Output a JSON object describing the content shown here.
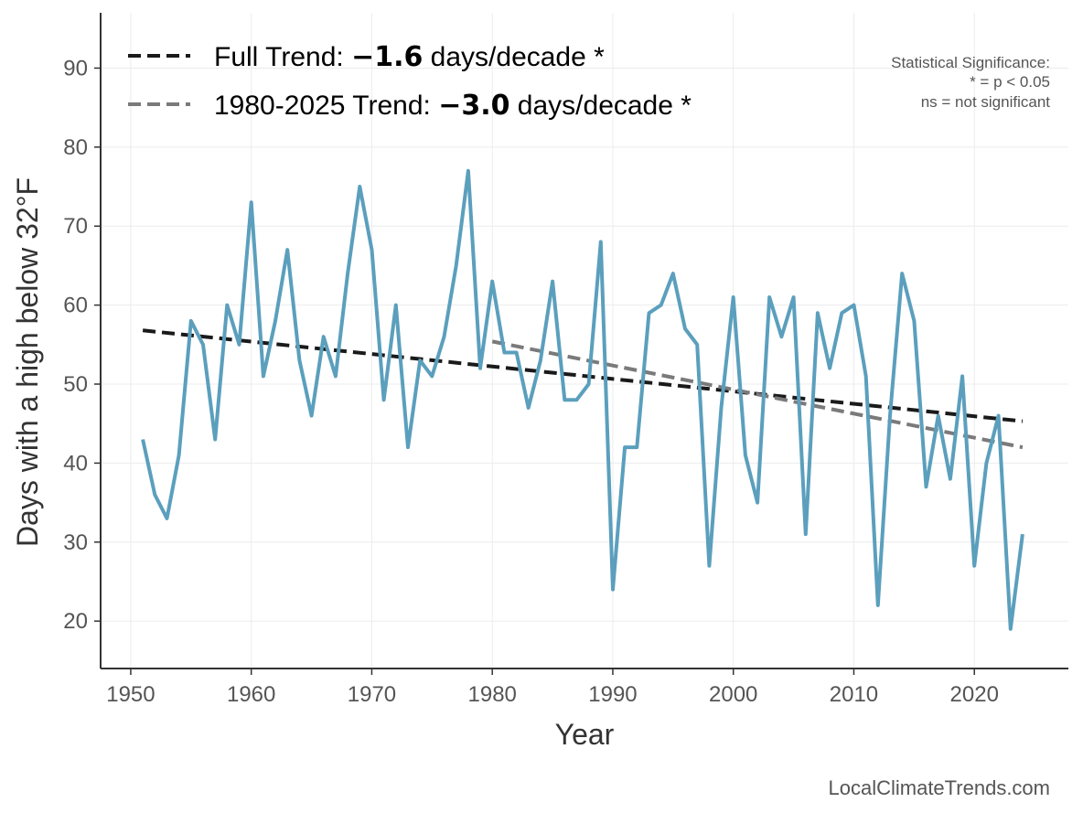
{
  "chart_data": {
    "type": "line",
    "xlabel": "Year",
    "ylabel": "Days with a high below 32°F",
    "xlim": [
      1947.5,
      2027.8
    ],
    "ylim": [
      14,
      97
    ],
    "x_ticks": [
      1950,
      1960,
      1970,
      1980,
      1990,
      2000,
      2010,
      2020
    ],
    "y_ticks": [
      20,
      30,
      40,
      50,
      60,
      70,
      80,
      90
    ],
    "grid": true,
    "legend_position": "top-left",
    "series": [
      {
        "color": "#5b9fbd",
        "x": [
          1951,
          1952,
          1953,
          1954,
          1955,
          1956,
          1957,
          1958,
          1959,
          1960,
          1961,
          1962,
          1963,
          1964,
          1965,
          1966,
          1967,
          1968,
          1969,
          1970,
          1971,
          1972,
          1973,
          1974,
          1975,
          1976,
          1977,
          1978,
          1979,
          1980,
          1981,
          1982,
          1983,
          1984,
          1985,
          1986,
          1987,
          1988,
          1989,
          1990,
          1991,
          1992,
          1993,
          1994,
          1995,
          1996,
          1997,
          1998,
          1999,
          2000,
          2001,
          2002,
          2003,
          2004,
          2005,
          2006,
          2007,
          2008,
          2009,
          2010,
          2011,
          2012,
          2013,
          2014,
          2015,
          2016,
          2017,
          2018,
          2019,
          2020,
          2021,
          2022,
          2023,
          2024
        ],
        "values": [
          43,
          36,
          33,
          41,
          58,
          55,
          43,
          60,
          55,
          73,
          51,
          58,
          67,
          53,
          46,
          56,
          51,
          64,
          75,
          67,
          48,
          60,
          42,
          53,
          51,
          56,
          65,
          77,
          52,
          63,
          54,
          54,
          47,
          53,
          63,
          48,
          48,
          50,
          68,
          24,
          42,
          42,
          59,
          60,
          64,
          57,
          55,
          27,
          47,
          61,
          41,
          35,
          61,
          56,
          61,
          31,
          59,
          52,
          59,
          60,
          51,
          22,
          46,
          64,
          58,
          37,
          46,
          38,
          51,
          27,
          40,
          46,
          19,
          31
        ]
      }
    ],
    "trends": [
      {
        "label_prefix": "Full Trend: ",
        "label_value": "−1.6",
        "label_suffix": " days/decade *",
        "color": "#1a1a1a",
        "x": [
          1951,
          2024
        ],
        "y": [
          56.8,
          45.3
        ]
      },
      {
        "label_prefix": "1980-2025 Trend: ",
        "label_value": "−3.0",
        "label_suffix": " days/decade *",
        "color": "#7a7a7a",
        "x": [
          1980,
          2024
        ],
        "y": [
          55.4,
          42.0
        ]
      }
    ],
    "annotations": {
      "significance_lines": [
        "Statistical Significance:",
        "* = p < 0.05",
        "ns = not significant"
      ],
      "source": "LocalClimateTrends.com"
    }
  }
}
